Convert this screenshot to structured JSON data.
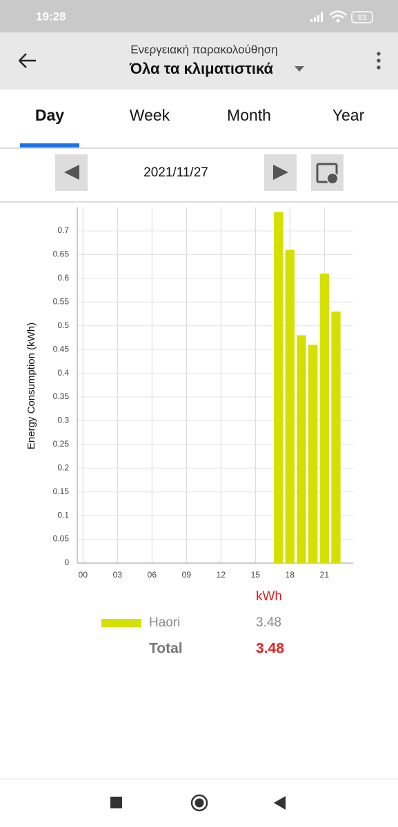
{
  "status_bar": {
    "time": "19:28",
    "battery": "83"
  },
  "header": {
    "subtitle": "Ενεργειακή παρακολούθηση",
    "title": "Όλα τα κλιματιστικά"
  },
  "tabs": [
    "Day",
    "Week",
    "Month",
    "Year"
  ],
  "date": "2021/11/27",
  "chart_data": {
    "type": "bar",
    "ylabel": "Energy Consumption (kWh)",
    "categories": [
      "00",
      null,
      null,
      "03",
      null,
      null,
      "06",
      null,
      null,
      "09",
      null,
      null,
      "12",
      null,
      null,
      "15",
      null,
      null,
      "18",
      null,
      null,
      "21",
      null,
      null
    ],
    "series": [
      {
        "name": "Haori",
        "color": "#d4e000",
        "values": [
          0,
          0,
          0,
          0,
          0,
          0,
          0,
          0,
          0,
          0,
          0,
          0,
          0,
          0,
          0,
          0,
          0,
          0.74,
          0.66,
          0.48,
          0.46,
          0.61,
          0.53,
          0
        ],
        "total": 3.48
      }
    ],
    "ylim": [
      0,
      0.75
    ],
    "yticks": [
      0,
      0.05,
      0.1,
      0.15,
      0.2,
      0.25,
      0.3,
      0.35,
      0.4,
      0.45,
      0.5,
      0.55,
      0.6,
      0.65,
      0.7
    ],
    "grid": true,
    "unit": "kWh",
    "total_label": "Total",
    "total": 3.48
  }
}
